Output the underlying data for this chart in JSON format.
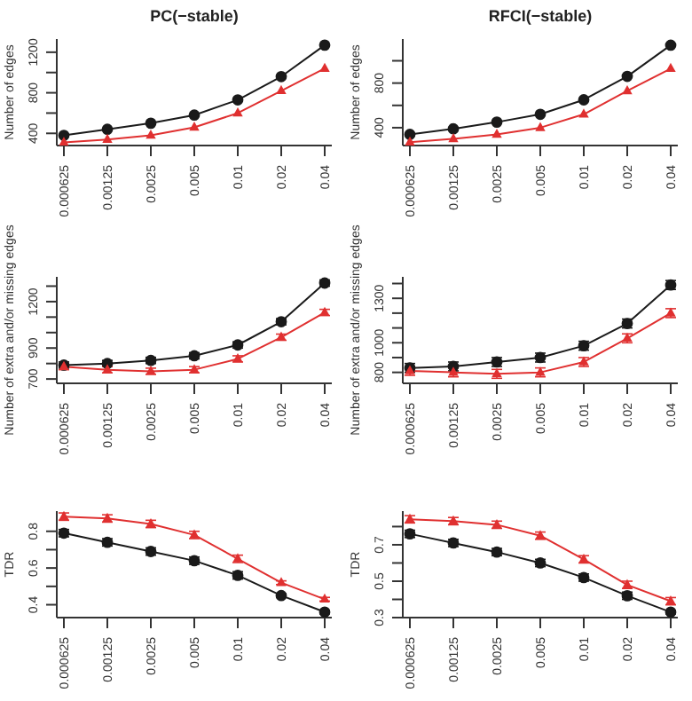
{
  "chart_data": [
    {
      "type": "line",
      "title": "PC(−stable)",
      "ylabel": "Number of edges",
      "categories": [
        "0.000625",
        "0.00125",
        "0.0025",
        "0.005",
        "0.01",
        "0.02",
        "0.04"
      ],
      "ylim": [
        280,
        1330
      ],
      "yticks": [
        400,
        {
          "value": 600,
          "label": null
        },
        800,
        {
          "value": 1000,
          "label": null
        },
        1200
      ],
      "grid": false,
      "legend": false,
      "series": [
        {
          "color": "#1a1a1a",
          "marker": "circle",
          "values": [
            380,
            440,
            500,
            580,
            730,
            960,
            1270
          ]
        },
        {
          "color": "#e03030",
          "marker": "triangle",
          "values": [
            310,
            340,
            380,
            460,
            600,
            820,
            1040
          ]
        }
      ]
    },
    {
      "type": "line",
      "title": "RFCI(−stable)",
      "ylabel": "Number of edges",
      "categories": [
        "0.000625",
        "0.00125",
        "0.0025",
        "0.005",
        "0.01",
        "0.02",
        "0.04"
      ],
      "ylim": [
        240,
        1195
      ],
      "yticks": [
        400,
        {
          "value": 600,
          "label": null
        },
        800,
        {
          "value": 1000,
          "label": null
        }
      ],
      "grid": false,
      "legend": false,
      "series": [
        {
          "color": "#1a1a1a",
          "marker": "circle",
          "values": [
            340,
            390,
            450,
            520,
            650,
            860,
            1140
          ]
        },
        {
          "color": "#e03030",
          "marker": "triangle",
          "values": [
            270,
            300,
            340,
            400,
            520,
            730,
            930
          ]
        }
      ]
    },
    {
      "type": "line",
      "ylabel": "Number of extra and/or missing edges",
      "categories": [
        "0.000625",
        "0.00125",
        "0.0025",
        "0.005",
        "0.01",
        "0.02",
        "0.04"
      ],
      "ylim": [
        672,
        1360
      ],
      "yticks": [
        700,
        {
          "value": 800,
          "label": null
        },
        900,
        {
          "value": 1000,
          "label": null
        },
        {
          "value": 1100,
          "label": null
        },
        1200,
        {
          "value": 1300,
          "label": null
        }
      ],
      "grid": false,
      "legend": false,
      "series": [
        {
          "color": "#1a1a1a",
          "marker": "circle",
          "values": [
            790,
            800,
            820,
            850,
            920,
            1070,
            1320
          ],
          "errors": [
            20,
            20,
            20,
            20,
            20,
            20,
            20
          ]
        },
        {
          "color": "#e03030",
          "marker": "triangle",
          "values": [
            780,
            760,
            750,
            760,
            830,
            970,
            1130
          ],
          "errors": [
            20,
            20,
            20,
            20,
            20,
            20,
            20
          ]
        }
      ]
    },
    {
      "type": "line",
      "ylabel": "Number of extra and/or missing edges",
      "categories": [
        "0.000625",
        "0.00125",
        "0.0025",
        "0.005",
        "0.01",
        "0.02",
        "0.04"
      ],
      "ylim": [
        726,
        1445
      ],
      "yticks": [
        800,
        {
          "value": 900,
          "label": null
        },
        1000,
        {
          "value": 1100,
          "label": null
        },
        {
          "value": 1200,
          "label": null
        },
        1300,
        {
          "value": 1400,
          "label": null
        }
      ],
      "grid": false,
      "legend": false,
      "series": [
        {
          "color": "#1a1a1a",
          "marker": "circle",
          "values": [
            830,
            840,
            870,
            900,
            980,
            1130,
            1390
          ],
          "errors": [
            30,
            30,
            30,
            30,
            30,
            30,
            30
          ]
        },
        {
          "color": "#e03030",
          "marker": "triangle",
          "values": [
            810,
            800,
            790,
            800,
            870,
            1030,
            1200
          ],
          "errors": [
            30,
            30,
            30,
            30,
            30,
            30,
            30
          ]
        }
      ]
    },
    {
      "type": "line",
      "ylabel": "TDR",
      "categories": [
        "0.000625",
        "0.00125",
        "0.0025",
        "0.005",
        "0.01",
        "0.02",
        "0.04"
      ],
      "ylim": [
        0.33,
        0.91
      ],
      "yticks": [
        0.4,
        {
          "value": 0.5,
          "label": null
        },
        0.6,
        {
          "value": 0.7,
          "label": null
        },
        0.8
      ],
      "grid": false,
      "legend": false,
      "series": [
        {
          "color": "#1a1a1a",
          "marker": "circle",
          "values": [
            0.79,
            0.74,
            0.69,
            0.64,
            0.56,
            0.45,
            0.36
          ],
          "errors": [
            0.02,
            0.02,
            0.02,
            0.02,
            0.02,
            0.01,
            0.01
          ]
        },
        {
          "color": "#e03030",
          "marker": "triangle",
          "values": [
            0.88,
            0.87,
            0.84,
            0.78,
            0.65,
            0.52,
            0.43
          ],
          "errors": [
            0.02,
            0.02,
            0.02,
            0.02,
            0.02,
            0.01,
            0.01
          ]
        }
      ]
    },
    {
      "type": "line",
      "ylabel": "TDR",
      "categories": [
        "0.000625",
        "0.00125",
        "0.0025",
        "0.005",
        "0.01",
        "0.02",
        "0.04"
      ],
      "ylim": [
        0.3,
        0.885
      ],
      "yticks": [
        0.3,
        {
          "value": 0.4,
          "label": null
        },
        0.5,
        {
          "value": 0.6,
          "label": null
        },
        0.7,
        {
          "value": 0.8,
          "label": null
        }
      ],
      "grid": false,
      "legend": false,
      "series": [
        {
          "color": "#1a1a1a",
          "marker": "circle",
          "values": [
            0.76,
            0.71,
            0.66,
            0.6,
            0.52,
            0.42,
            0.33
          ],
          "errors": [
            0.02,
            0.02,
            0.02,
            0.02,
            0.02,
            0.02,
            0.01
          ]
        },
        {
          "color": "#e03030",
          "marker": "triangle",
          "values": [
            0.84,
            0.83,
            0.81,
            0.75,
            0.62,
            0.48,
            0.39
          ],
          "errors": [
            0.02,
            0.02,
            0.02,
            0.02,
            0.02,
            0.02,
            0.02
          ]
        }
      ]
    }
  ]
}
